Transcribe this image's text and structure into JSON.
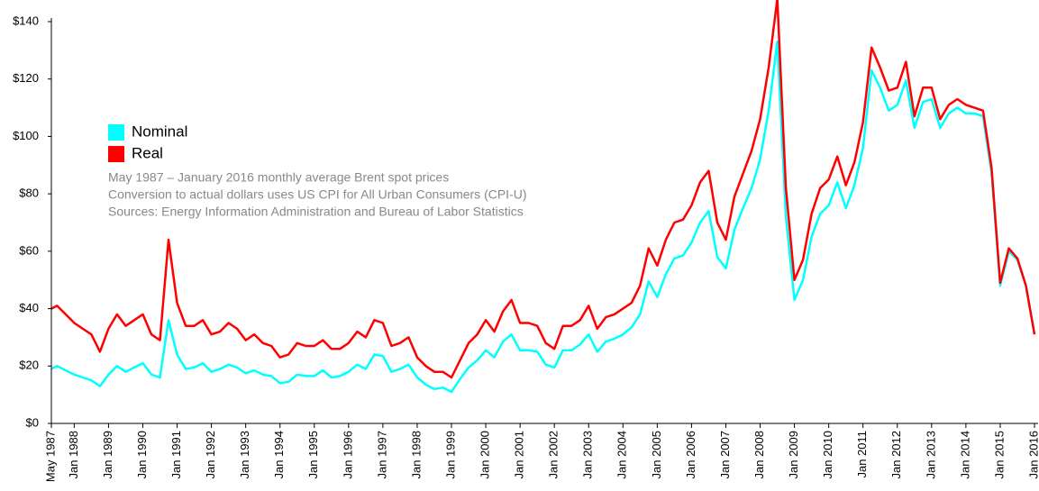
{
  "chart_data": {
    "type": "line",
    "legend": "upper-left",
    "annotations": [
      "May 1987 – January 2016 monthly average Brent spot prices",
      "Conversion to actual dollars uses US CPI for All Urban Consumers (CPI-U)",
      "Sources: Energy Information Administration and Bureau of Labor Statistics"
    ],
    "x": [
      "1987-05",
      "1987-07",
      "1987-10",
      "1988-01",
      "1988-04",
      "1988-07",
      "1988-10",
      "1989-01",
      "1989-04",
      "1989-07",
      "1989-10",
      "1990-01",
      "1990-04",
      "1990-07",
      "1990-10",
      "1991-01",
      "1991-04",
      "1991-07",
      "1991-10",
      "1992-01",
      "1992-04",
      "1992-07",
      "1992-10",
      "1993-01",
      "1993-04",
      "1993-07",
      "1993-10",
      "1994-01",
      "1994-04",
      "1994-07",
      "1994-10",
      "1995-01",
      "1995-04",
      "1995-07",
      "1995-10",
      "1996-01",
      "1996-04",
      "1996-07",
      "1996-10",
      "1997-01",
      "1997-04",
      "1997-07",
      "1997-10",
      "1998-01",
      "1998-04",
      "1998-07",
      "1998-10",
      "1999-01",
      "1999-04",
      "1999-07",
      "1999-10",
      "2000-01",
      "2000-04",
      "2000-07",
      "2000-10",
      "2001-01",
      "2001-04",
      "2001-07",
      "2001-10",
      "2002-01",
      "2002-04",
      "2002-07",
      "2002-10",
      "2003-01",
      "2003-04",
      "2003-07",
      "2003-10",
      "2004-01",
      "2004-04",
      "2004-07",
      "2004-10",
      "2005-01",
      "2005-04",
      "2005-07",
      "2005-10",
      "2006-01",
      "2006-04",
      "2006-07",
      "2006-10",
      "2007-01",
      "2007-04",
      "2007-07",
      "2007-10",
      "2008-01",
      "2008-04",
      "2008-07",
      "2008-10",
      "2009-01",
      "2009-04",
      "2009-07",
      "2009-10",
      "2010-01",
      "2010-04",
      "2010-07",
      "2010-10",
      "2011-01",
      "2011-04",
      "2011-07",
      "2011-10",
      "2012-01",
      "2012-04",
      "2012-07",
      "2012-10",
      "2013-01",
      "2013-04",
      "2013-07",
      "2013-10",
      "2014-01",
      "2014-04",
      "2014-07",
      "2014-10",
      "2015-01",
      "2015-04",
      "2015-07",
      "2015-10",
      "2016-01"
    ],
    "series": [
      {
        "name": "Nominal",
        "color": "#00ffff",
        "values": [
          19,
          20,
          18.5,
          17,
          16,
          15,
          13,
          17,
          20,
          18,
          19.5,
          21,
          17,
          16,
          36,
          24,
          19,
          19.5,
          21,
          18,
          19,
          20.5,
          19.5,
          17.5,
          18.5,
          17,
          16.5,
          14,
          14.5,
          17,
          16.5,
          16.5,
          18.5,
          16,
          16.5,
          18,
          20.5,
          19,
          24,
          23.5,
          18,
          19,
          20.5,
          16,
          13.5,
          12,
          12.5,
          11,
          15.5,
          19.5,
          22,
          25.5,
          23,
          28.5,
          31,
          25.5,
          25.5,
          25,
          20.5,
          19.5,
          25.5,
          25.5,
          27.5,
          31,
          25,
          28.5,
          29.5,
          31,
          33.5,
          38,
          49.5,
          44,
          52,
          57.5,
          58.5,
          63,
          70,
          74,
          58,
          54,
          67.5,
          75,
          82,
          92,
          109,
          133,
          72,
          43,
          50,
          65,
          73,
          76,
          84,
          75,
          83,
          96,
          123,
          117,
          109,
          111,
          119.5,
          103,
          112,
          113,
          103,
          108,
          110,
          108,
          108,
          107,
          87,
          48,
          60,
          57,
          48,
          31
        ]
      },
      {
        "name": "Real",
        "color": "#ff0000",
        "values": [
          40,
          41,
          38,
          35,
          33,
          31,
          25,
          33,
          38,
          34,
          36,
          38,
          31,
          29,
          64,
          42,
          34,
          34,
          36,
          31,
          32,
          35,
          33,
          29,
          31,
          28,
          27,
          23,
          24,
          28,
          27,
          27,
          29,
          26,
          26,
          28,
          32,
          30,
          36,
          35,
          27,
          28,
          30,
          23,
          20,
          18,
          18,
          16,
          22,
          28,
          31,
          36,
          32,
          39,
          43,
          35,
          35,
          34,
          28,
          26,
          34,
          34,
          36,
          41,
          33,
          37,
          38,
          40,
          42,
          48,
          61,
          55,
          64,
          70,
          71,
          76,
          84,
          88,
          70,
          64,
          79,
          87,
          95,
          106,
          124,
          148,
          82,
          50,
          57,
          73,
          82,
          85,
          93,
          83,
          91,
          105,
          131,
          124,
          116,
          117,
          126,
          107,
          117,
          117,
          106,
          111,
          113,
          111,
          110,
          109,
          89,
          49,
          61,
          57.5,
          48,
          31
        ]
      }
    ],
    "xlim": [
      "1987-05",
      "2016-01"
    ],
    "xticks": [
      {
        "value": "1987-05",
        "label": "May 1987"
      },
      {
        "value": "1988-01",
        "label": "Jan 1988"
      },
      {
        "value": "1989-01",
        "label": "Jan 1989"
      },
      {
        "value": "1990-01",
        "label": "Jan 1990"
      },
      {
        "value": "1991-01",
        "label": "Jan 1991"
      },
      {
        "value": "1992-01",
        "label": "Jan 1992"
      },
      {
        "value": "1993-01",
        "label": "Jan 1993"
      },
      {
        "value": "1994-01",
        "label": "Jan 1994"
      },
      {
        "value": "1995-01",
        "label": "Jan 1995"
      },
      {
        "value": "1996-01",
        "label": "Jan 1996"
      },
      {
        "value": "1997-01",
        "label": "Jan 1997"
      },
      {
        "value": "1998-01",
        "label": "Jan 1998"
      },
      {
        "value": "1999-01",
        "label": "Jan 1999"
      },
      {
        "value": "2000-01",
        "label": "Jan 2000"
      },
      {
        "value": "2001-01",
        "label": "Jan 2001"
      },
      {
        "value": "2002-01",
        "label": "Jan 2002"
      },
      {
        "value": "2003-01",
        "label": "Jan 2003"
      },
      {
        "value": "2004-01",
        "label": "Jan 2004"
      },
      {
        "value": "2005-01",
        "label": "Jan 2005"
      },
      {
        "value": "2006-01",
        "label": "Jan 2006"
      },
      {
        "value": "2007-01",
        "label": "Jan 2007"
      },
      {
        "value": "2008-01",
        "label": "Jan 2008"
      },
      {
        "value": "2009-01",
        "label": "Jan 2009"
      },
      {
        "value": "2010-01",
        "label": "Jan 2010"
      },
      {
        "value": "2011-01",
        "label": "Jan 2011"
      },
      {
        "value": "2012-01",
        "label": "Jan 2012"
      },
      {
        "value": "2013-01",
        "label": "Jan 2013"
      },
      {
        "value": "2014-01",
        "label": "Jan 2014"
      },
      {
        "value": "2015-01",
        "label": "Jan 2015"
      },
      {
        "value": "2016-01",
        "label": "Jan 2016"
      }
    ],
    "ylim": [
      0,
      140
    ],
    "yticks": [
      {
        "value": 0,
        "label": "$0"
      },
      {
        "value": 20,
        "label": "$20"
      },
      {
        "value": 40,
        "label": "$40"
      },
      {
        "value": 60,
        "label": "$60"
      },
      {
        "value": 80,
        "label": "$80"
      },
      {
        "value": 100,
        "label": "$100"
      },
      {
        "value": 120,
        "label": "$120"
      },
      {
        "value": 140,
        "label": "$140"
      }
    ]
  }
}
